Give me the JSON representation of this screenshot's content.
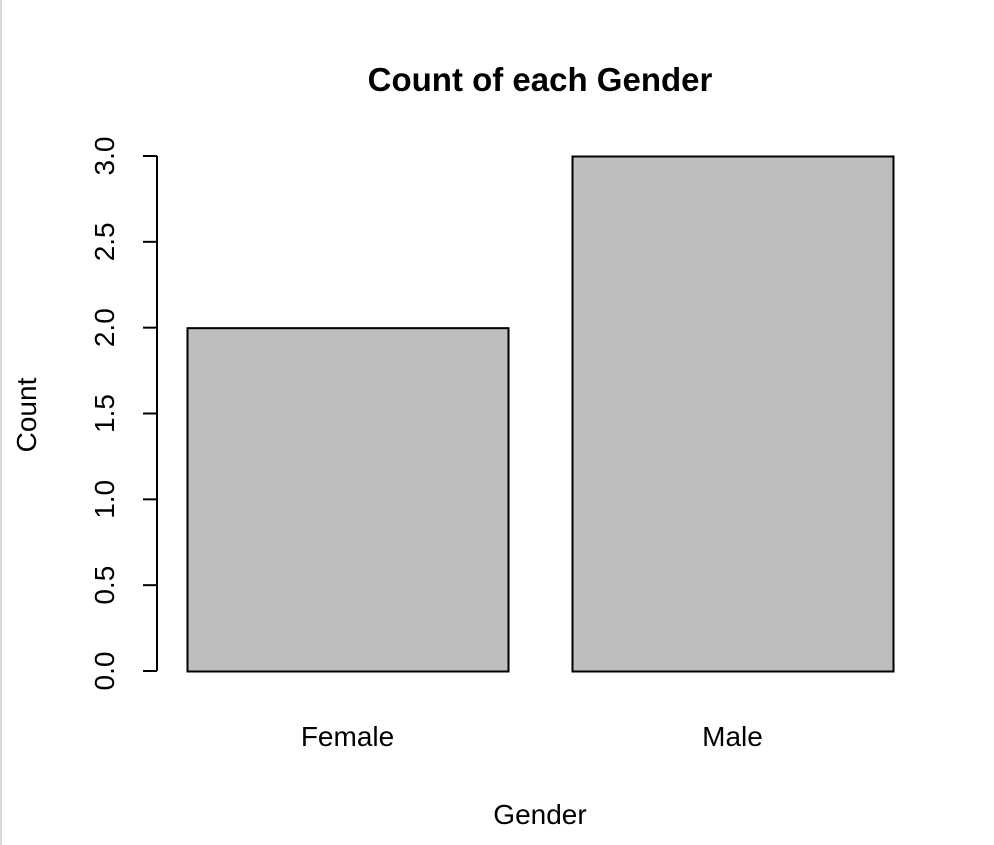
{
  "chart_data": {
    "type": "bar",
    "title": "Count of each Gender",
    "xlabel": "Gender",
    "ylabel": "Count",
    "categories": [
      "Female",
      "Male"
    ],
    "values": [
      2,
      3
    ],
    "ylim": [
      0,
      3
    ],
    "yticks": [
      "0.0",
      "0.5",
      "1.0",
      "1.5",
      "2.0",
      "2.5",
      "3.0"
    ],
    "grid": false,
    "legend": "none",
    "bar_color": "#bebebe",
    "bar_border_color": "#000000"
  }
}
